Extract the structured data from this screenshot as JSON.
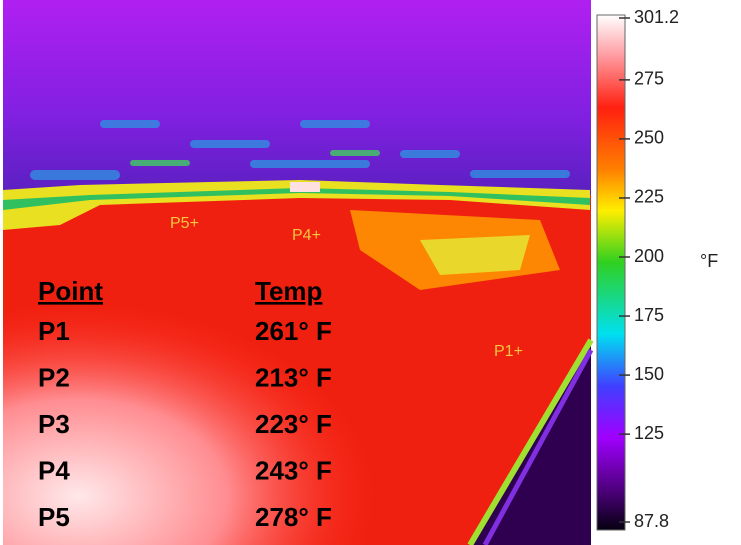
{
  "image": {
    "point_markers": [
      "P5+",
      "P4+",
      "P1+"
    ]
  },
  "table": {
    "header": [
      "Point",
      "Temp"
    ],
    "rows": [
      [
        "P1",
        "261° F"
      ],
      [
        "P2",
        "213° F"
      ],
      [
        "P3",
        "223° F"
      ],
      [
        "P4",
        "243° F"
      ],
      [
        "P5",
        "278° F"
      ]
    ]
  },
  "colorbar": {
    "unit": "°F",
    "range": [
      87.8,
      301.2
    ],
    "ticks": [
      301.2,
      275,
      250,
      225,
      200,
      175,
      150,
      125,
      87.8
    ]
  }
}
